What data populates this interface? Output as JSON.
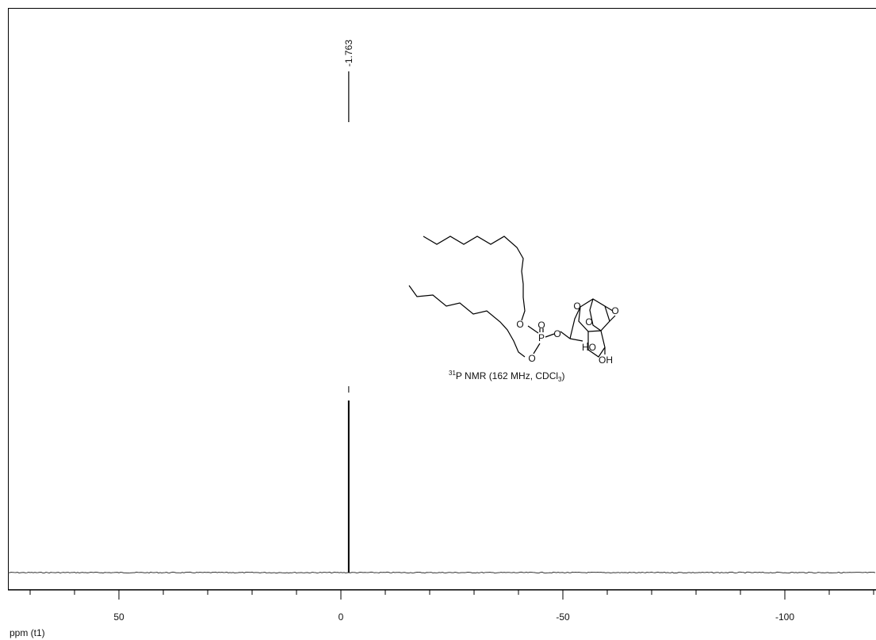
{
  "chart_data": {
    "type": "line",
    "title": "",
    "xlabel": "ppm (t1)",
    "ylabel": "",
    "xlim": [
      125,
      -245
    ],
    "x_reversed": true,
    "grid": false,
    "xticks": [
      100,
      50,
      0,
      -50,
      -100,
      -150,
      -200
    ],
    "x_minor_step": 10,
    "series": [
      {
        "x": [
          125,
          2.2,
          -1.763,
          -5.7,
          -245
        ],
        "y": [
          0,
          0,
          1.0,
          0,
          0
        ]
      }
    ],
    "peaks": [
      {
        "ppm": -1.763,
        "label": "-1.763"
      }
    ],
    "annotation": {
      "nucleus_mass": "31",
      "text_main": "P NMR (162 MHz, CDCl",
      "subscript": "3",
      "close": ")"
    },
    "structure_labels": [
      "O",
      "P",
      "O",
      "O",
      "O",
      "O",
      "O",
      "O",
      "HO",
      "OH"
    ]
  }
}
